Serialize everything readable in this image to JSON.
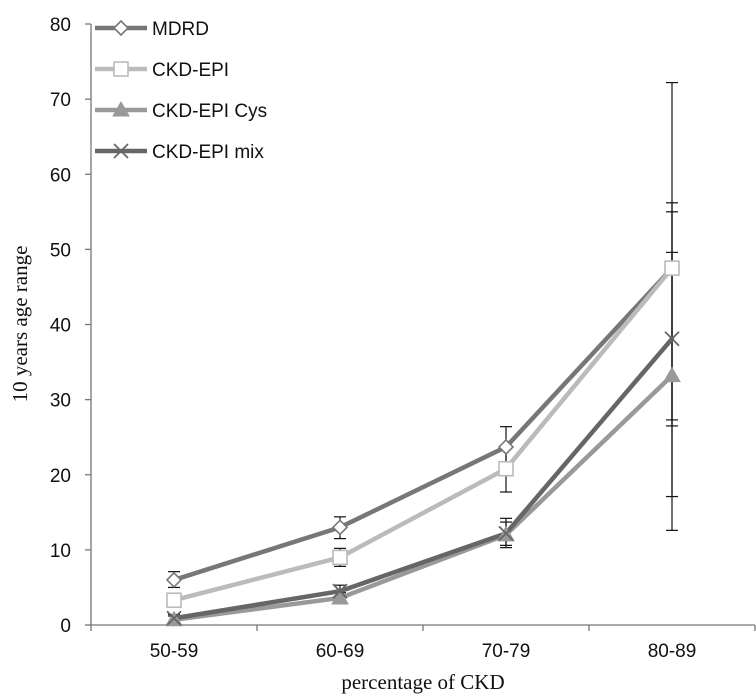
{
  "chart_data": {
    "type": "line",
    "title": "",
    "xlabel": "percentage of CKD",
    "ylabel": "10 years age range",
    "categories": [
      "50-59",
      "60-69",
      "70-79",
      "80-89"
    ],
    "ylim": [
      0,
      80
    ],
    "yticks": [
      0,
      10,
      20,
      30,
      40,
      50,
      60,
      70,
      80
    ],
    "grid": false,
    "legend_position": "top-left",
    "series": [
      {
        "name": "MDRD",
        "values": [
          6.0,
          13.0,
          23.7,
          47.5
        ],
        "error_low": [
          5.0,
          11.5,
          21.3,
          27.3
        ],
        "error_high": [
          7.1,
          14.4,
          26.4,
          72.2
        ],
        "color": "#777777",
        "marker": "diamond-open"
      },
      {
        "name": "CKD-EPI",
        "values": [
          3.3,
          9.0,
          20.8,
          47.5
        ],
        "error_low": [
          2.5,
          7.8,
          17.7,
          26.5
        ],
        "error_high": [
          4.2,
          10.2,
          23.5,
          56.2
        ],
        "color": "#bbbbbb",
        "marker": "square-open"
      },
      {
        "name": "CKD-EPI Cys",
        "values": [
          0.7,
          3.6,
          12.0,
          33.2
        ],
        "error_low": [
          0.2,
          2.9,
          10.3,
          12.6
        ],
        "error_high": [
          1.2,
          4.3,
          13.7,
          49.6
        ],
        "color": "#999999",
        "marker": "triangle"
      },
      {
        "name": "CKD-EPI mix",
        "values": [
          0.9,
          4.5,
          12.2,
          38.1
        ],
        "error_low": [
          0.4,
          3.7,
          10.6,
          17.1
        ],
        "error_high": [
          1.4,
          5.3,
          14.2,
          55.0
        ],
        "color": "#666666",
        "marker": "x"
      }
    ]
  }
}
